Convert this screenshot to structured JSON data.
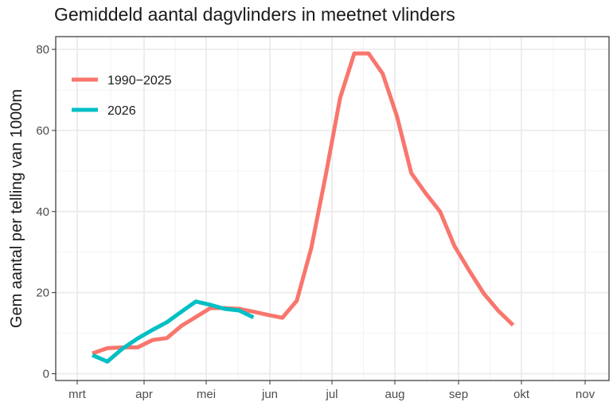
{
  "chart_data": {
    "type": "line",
    "title": "Gemiddeld aantal dagvlinders in meetnet vlinders",
    "xlabel": "",
    "ylabel": "Gem aantal per telling van 1000m",
    "x_ticks": [
      "mrt",
      "apr",
      "mei",
      "jun",
      "jul",
      "aug",
      "sep",
      "okt",
      "nov"
    ],
    "y_ticks": [
      0,
      20,
      40,
      60,
      80
    ],
    "ylim": [
      0,
      80
    ],
    "legend_position": "top-left",
    "grid": true,
    "series": [
      {
        "name": "1990−2025",
        "color": "#F8766D",
        "points": [
          {
            "x": "2026-03-08",
            "y": 5.0
          },
          {
            "x": "2026-03-15",
            "y": 6.3
          },
          {
            "x": "2026-03-22",
            "y": 6.5
          },
          {
            "x": "2026-03-29",
            "y": 6.5
          },
          {
            "x": "2026-04-05",
            "y": 8.3
          },
          {
            "x": "2026-04-12",
            "y": 8.8
          },
          {
            "x": "2026-04-19",
            "y": 11.8
          },
          {
            "x": "2026-04-26",
            "y": 14.0
          },
          {
            "x": "2026-05-03",
            "y": 16.2
          },
          {
            "x": "2026-05-10",
            "y": 16.2
          },
          {
            "x": "2026-05-17",
            "y": 16.0
          },
          {
            "x": "2026-05-24",
            "y": 15.3
          },
          {
            "x": "2026-05-31",
            "y": 14.5
          },
          {
            "x": "2026-06-07",
            "y": 13.8
          },
          {
            "x": "2026-06-14",
            "y": 18.0
          },
          {
            "x": "2026-06-21",
            "y": 31.0
          },
          {
            "x": "2026-06-28",
            "y": 49.0
          },
          {
            "x": "2026-07-05",
            "y": 68.0
          },
          {
            "x": "2026-07-12",
            "y": 79.0
          },
          {
            "x": "2026-07-19",
            "y": 79.0
          },
          {
            "x": "2026-07-26",
            "y": 74.0
          },
          {
            "x": "2026-08-02",
            "y": 63.5
          },
          {
            "x": "2026-08-09",
            "y": 49.5
          },
          {
            "x": "2026-08-16",
            "y": 44.5
          },
          {
            "x": "2026-08-23",
            "y": 40.0
          },
          {
            "x": "2026-08-30",
            "y": 31.5
          },
          {
            "x": "2026-09-06",
            "y": 25.5
          },
          {
            "x": "2026-09-13",
            "y": 19.8
          },
          {
            "x": "2026-09-20",
            "y": 15.5
          },
          {
            "x": "2026-09-27",
            "y": 12.0
          }
        ]
      },
      {
        "name": "2026",
        "color": "#00BFC4",
        "points": [
          {
            "x": "2026-03-08",
            "y": 4.6
          },
          {
            "x": "2026-03-15",
            "y": 3.0
          },
          {
            "x": "2026-03-22",
            "y": 6.2
          },
          {
            "x": "2026-03-29",
            "y": 8.7
          },
          {
            "x": "2026-04-05",
            "y": 10.8
          },
          {
            "x": "2026-04-12",
            "y": 12.7
          },
          {
            "x": "2026-04-19",
            "y": 15.3
          },
          {
            "x": "2026-04-26",
            "y": 17.8
          },
          {
            "x": "2026-05-03",
            "y": 17.0
          },
          {
            "x": "2026-05-10",
            "y": 16.0
          },
          {
            "x": "2026-05-17",
            "y": 15.6
          },
          {
            "x": "2026-05-24",
            "y": 13.9
          }
        ]
      }
    ]
  }
}
